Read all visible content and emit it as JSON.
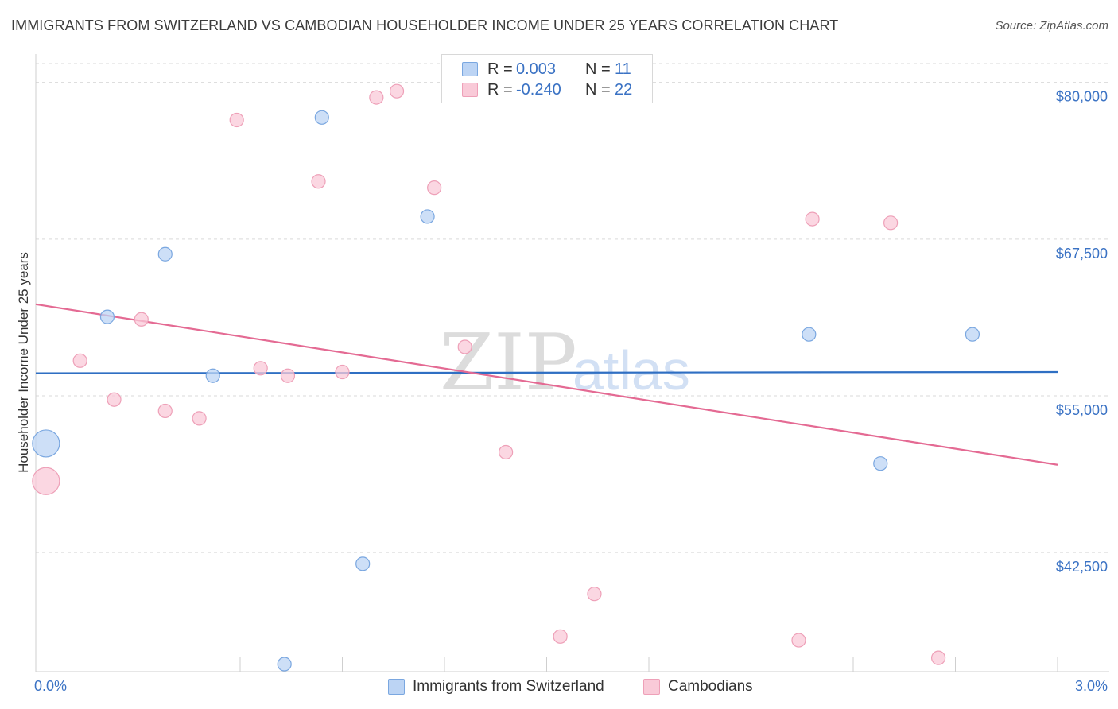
{
  "header": {
    "title": "IMMIGRANTS FROM SWITZERLAND VS CAMBODIAN HOUSEHOLDER INCOME UNDER 25 YEARS CORRELATION CHART",
    "source": "Source: ZipAtlas.com"
  },
  "watermark": {
    "zip": "ZIP",
    "atlas": "atlas"
  },
  "legend": {
    "rows": [
      {
        "r_label": "R =",
        "r_value": "0.003",
        "n_label": "N =",
        "n_value": "11"
      },
      {
        "r_label": "R =",
        "r_value": "-0.240",
        "n_label": "N =",
        "n_value": "22"
      }
    ]
  },
  "bottom_legend": {
    "series1": "Immigrants from Switzerland",
    "series2": "Cambodians"
  },
  "colors": {
    "blue_fill": "#bcd4f4",
    "blue_stroke": "#7aa7e0",
    "blue_line": "#2f6fc3",
    "pink_fill": "#f9cad8",
    "pink_stroke": "#eea0b8",
    "pink_line": "#e46a93",
    "grid": "#d9d9d9",
    "tick_text": "#3a72c4"
  },
  "chart_data": {
    "type": "scatter",
    "title": "IMMIGRANTS FROM SWITZERLAND VS CAMBODIAN HOUSEHOLDER INCOME UNDER 25 YEARS CORRELATION CHART",
    "xlabel": "",
    "ylabel": "Householder Income Under 25 years",
    "xlim": [
      0,
      3.0
    ],
    "ylim": [
      33000,
      81500
    ],
    "x_tick_labels": [
      "0.0%",
      "3.0%"
    ],
    "y_ticks": [
      42500,
      55000,
      67500,
      80000
    ],
    "y_tick_labels": [
      "$42,500",
      "$55,000",
      "$67,500",
      "$80,000"
    ],
    "grid": true,
    "series": [
      {
        "name": "Immigrants from Switzerland",
        "R": 0.003,
        "N": 11,
        "trend": [
          [
            0.0,
            56800
          ],
          [
            3.0,
            56900
          ]
        ],
        "points": [
          {
            "x": 0.03,
            "y": 51200,
            "big": true
          },
          {
            "x": 0.21,
            "y": 61300
          },
          {
            "x": 0.38,
            "y": 66300
          },
          {
            "x": 0.52,
            "y": 56600
          },
          {
            "x": 0.73,
            "y": 33600
          },
          {
            "x": 0.84,
            "y": 77200
          },
          {
            "x": 0.96,
            "y": 41600
          },
          {
            "x": 1.15,
            "y": 69300
          },
          {
            "x": 2.27,
            "y": 59900
          },
          {
            "x": 2.48,
            "y": 49600
          },
          {
            "x": 2.75,
            "y": 59900
          }
        ]
      },
      {
        "name": "Cambodians",
        "R": -0.24,
        "N": 22,
        "trend": [
          [
            0.0,
            62300
          ],
          [
            3.0,
            49500
          ]
        ],
        "points": [
          {
            "x": 0.03,
            "y": 48200,
            "big": true
          },
          {
            "x": 0.13,
            "y": 57800
          },
          {
            "x": 0.23,
            "y": 54700
          },
          {
            "x": 0.31,
            "y": 61100
          },
          {
            "x": 0.38,
            "y": 53800
          },
          {
            "x": 0.48,
            "y": 53200
          },
          {
            "x": 0.59,
            "y": 77000
          },
          {
            "x": 0.66,
            "y": 57200
          },
          {
            "x": 0.74,
            "y": 56600
          },
          {
            "x": 0.83,
            "y": 72100
          },
          {
            "x": 0.9,
            "y": 56900
          },
          {
            "x": 1.0,
            "y": 78800
          },
          {
            "x": 1.06,
            "y": 79300
          },
          {
            "x": 1.17,
            "y": 71600
          },
          {
            "x": 1.26,
            "y": 58900
          },
          {
            "x": 1.38,
            "y": 50500
          },
          {
            "x": 1.54,
            "y": 35800
          },
          {
            "x": 1.64,
            "y": 39200
          },
          {
            "x": 2.24,
            "y": 35500
          },
          {
            "x": 2.28,
            "y": 69100
          },
          {
            "x": 2.51,
            "y": 68800
          },
          {
            "x": 2.65,
            "y": 34100
          }
        ]
      }
    ]
  }
}
